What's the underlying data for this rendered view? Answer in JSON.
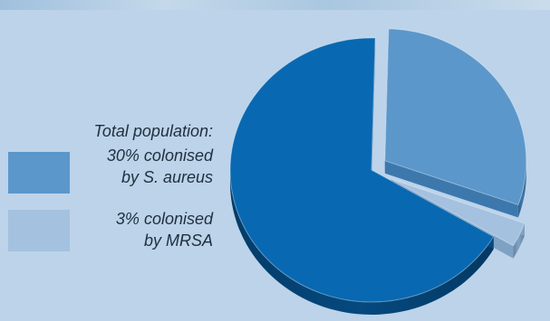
{
  "chart_data": {
    "type": "pie",
    "title": "",
    "legend_title": "Total population:",
    "legend_position": "left",
    "exploded": true,
    "three_d": true,
    "slices": [
      {
        "label_lines": [
          "30% colonised",
          "by S. aureus"
        ],
        "value": 30,
        "color": "#5b97cb",
        "side_color": "#3d78ad",
        "legend": true
      },
      {
        "label_lines": [
          "3% colonised",
          "by MRSA"
        ],
        "value": 3,
        "color": "#a4c1df",
        "side_color": "#7fa2c4",
        "legend": true
      },
      {
        "label_lines": [],
        "value": 67,
        "color": "#0968b2",
        "side_color": "#05497f",
        "legend": false
      }
    ]
  },
  "colors": {
    "background": "#bcd3ea",
    "text": "#1f2f3d"
  }
}
